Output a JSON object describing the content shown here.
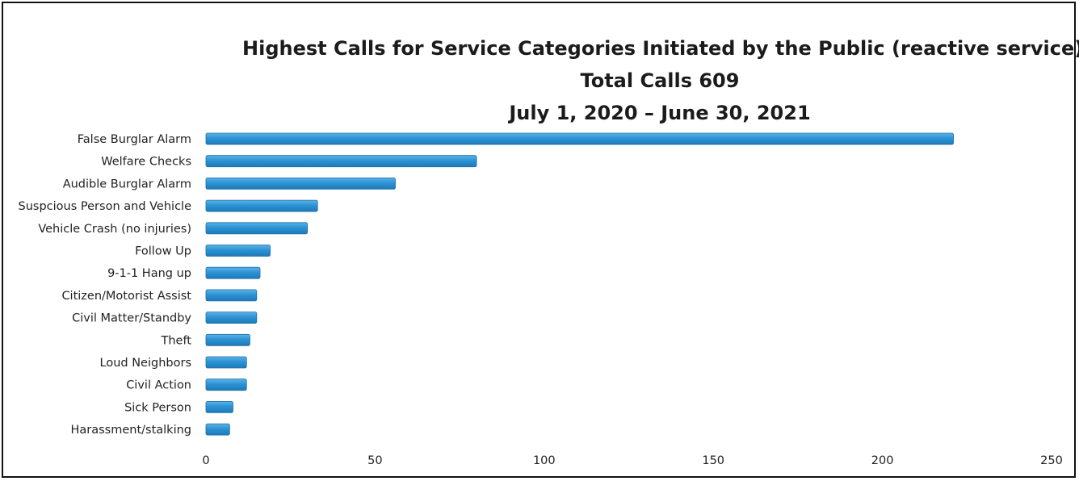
{
  "chart_data": {
    "type": "bar",
    "orientation": "horizontal",
    "title": [
      "Highest Calls for Service Categories Initiated by the Public (reactive service)",
      "Total Calls 609",
      "July 1, 2020 – June 30, 2021"
    ],
    "categories": [
      "False Burglar Alarm",
      "Welfare Checks",
      "Audible Burglar Alarm",
      "Suspcious Person and Vehicle",
      "Vehicle Crash (no injuries)",
      "Follow Up",
      "9-1-1 Hang up",
      "Citizen/Motorist Assist",
      "Civil Matter/Standby",
      "Theft",
      "Loud Neighbors",
      "Civil Action",
      "Sick Person",
      "Harassment/stalking"
    ],
    "values": [
      221,
      80,
      56,
      33,
      30,
      19,
      16,
      15,
      15,
      13,
      12,
      12,
      8,
      7
    ],
    "xlim": [
      0,
      250
    ],
    "xticks": [
      0,
      50,
      100,
      150,
      200,
      250
    ],
    "xlabel": "",
    "ylabel": "",
    "grid": false,
    "legend": "none",
    "bar_color": "#2c93d4"
  }
}
